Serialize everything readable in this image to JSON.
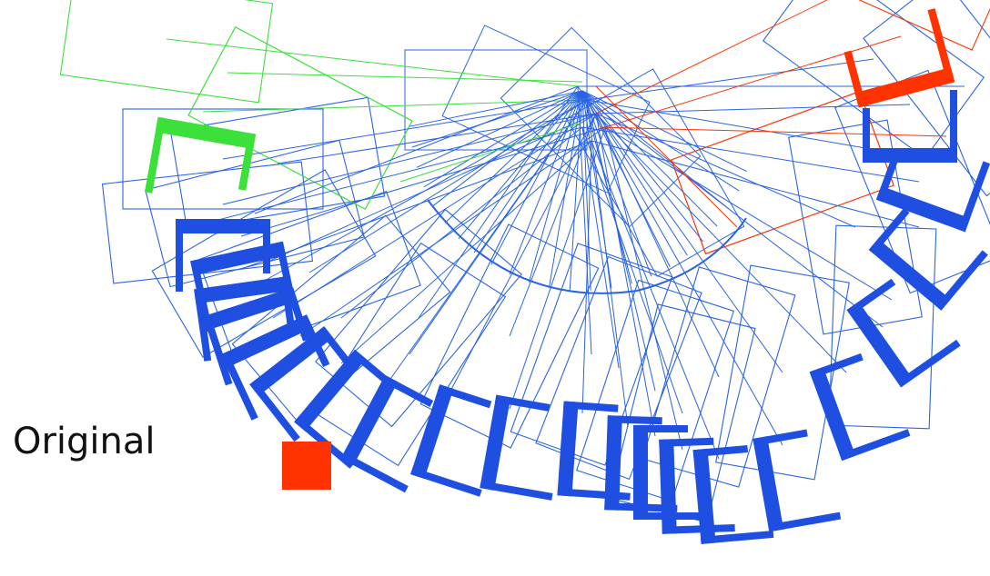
{
  "labels": {
    "original": "Original"
  },
  "colors": {
    "chair": "#1e4fe0",
    "frame": "#2a63e6",
    "start_chair": "#3be03b",
    "goal_chair": "#ff3300",
    "original_marker": "#ff3300",
    "background": "#ffffff"
  },
  "icons": {
    "original_marker": "red-square-marker"
  }
}
